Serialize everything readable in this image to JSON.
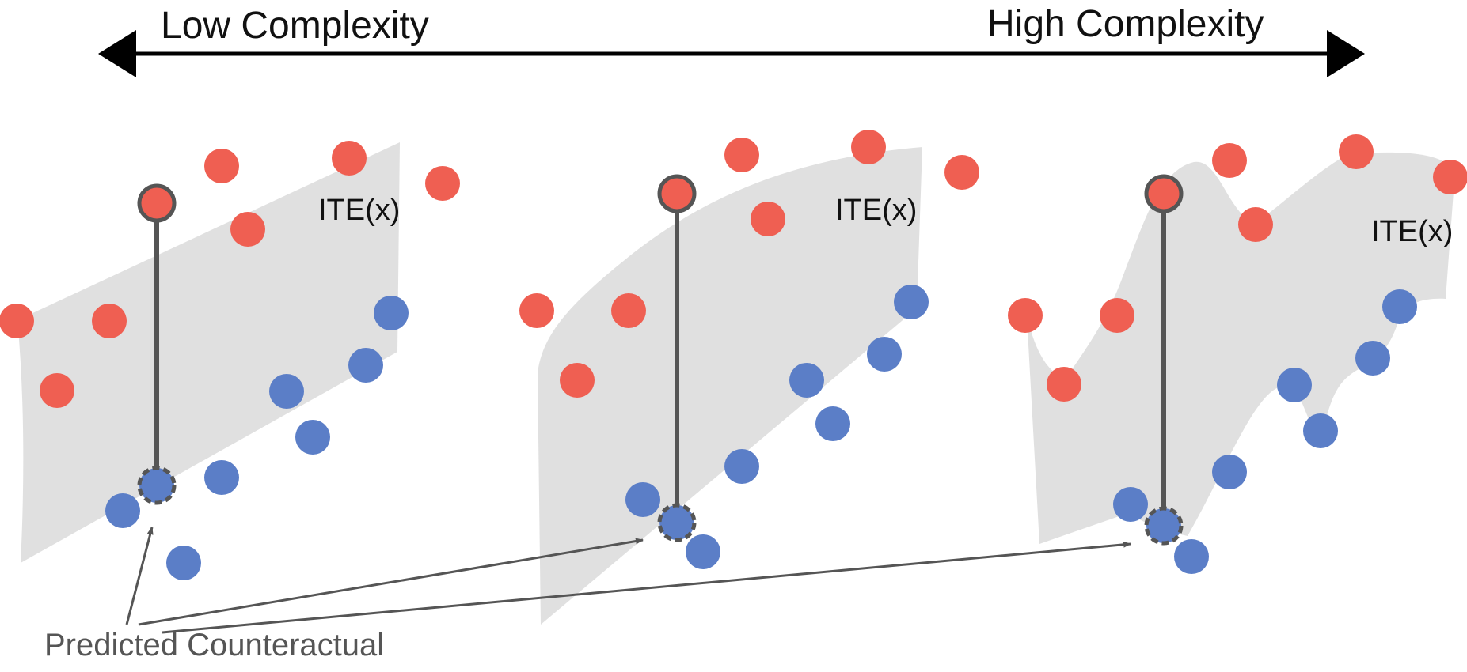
{
  "top_axis": {
    "left_label": "Low Complexity",
    "right_label": "High Complexity"
  },
  "panels": [
    {
      "ite_label": "ITE(x)"
    },
    {
      "ite_label": "ITE(x)"
    },
    {
      "ite_label": "ITE(x)"
    }
  ],
  "bottom_label": "Predicted Counteractual",
  "colors": {
    "treated_point": "#ef5f52",
    "control_point": "#5b7ec7",
    "ite_band": "#e0e0e0",
    "connector": "#555555",
    "arrow": "#000000",
    "annotation_text": "#555555"
  }
}
